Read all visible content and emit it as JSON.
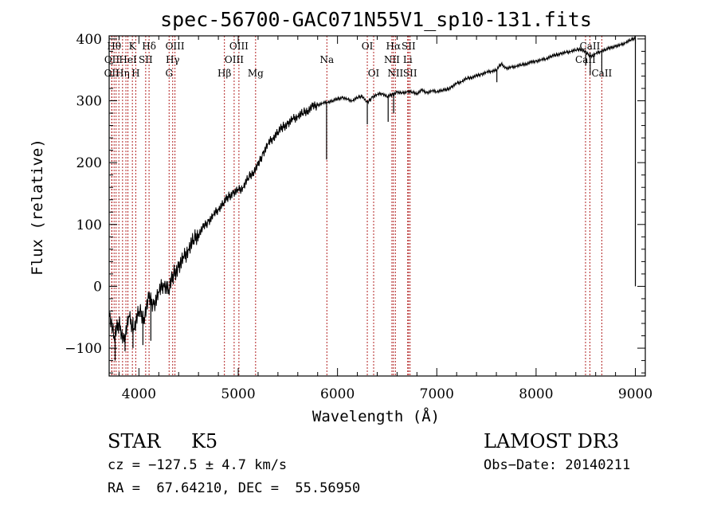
{
  "chart_data": {
    "type": "line",
    "title": "spec-56700-GAC071N55V1_sp10-131.fits",
    "xlabel": "Wavelength (Å)",
    "ylabel": "Flux (relative)",
    "xlim": [
      3700,
      9100
    ],
    "ylim": [
      -145,
      405
    ],
    "xticks": [
      4000,
      5000,
      6000,
      7000,
      8000,
      9000
    ],
    "yticks": [
      -100,
      0,
      100,
      200,
      300,
      400
    ],
    "xtick_labels": [
      "4000",
      "5000",
      "6000",
      "7000",
      "8000",
      "9000"
    ],
    "ytick_labels": [
      "−100",
      "0",
      "100",
      "200",
      "300",
      "400"
    ],
    "grid": false,
    "line_color": "#000000",
    "marker_color": "#b22222",
    "series": [
      {
        "x": [
          3700,
          3750,
          3800,
          3850,
          3900,
          3950,
          4000,
          4050,
          4100,
          4150,
          4200,
          4250,
          4300,
          4350,
          4400,
          4450,
          4500,
          4550,
          4600,
          4650,
          4700,
          4750,
          4800,
          4850,
          4900,
          4950,
          5000,
          5050,
          5100,
          5150,
          5200,
          5250,
          5300,
          5350,
          5400,
          5450,
          5500,
          5550,
          5600,
          5650,
          5700,
          5750,
          5800,
          5850,
          5900,
          5950,
          6000,
          6050,
          6100,
          6150,
          6200,
          6250,
          6300,
          6350,
          6400,
          6450,
          6500,
          6550,
          6600,
          6650,
          6700,
          6750,
          6800,
          6850,
          6900,
          6950,
          7000,
          7050,
          7100,
          7150,
          7200,
          7250,
          7300,
          7350,
          7400,
          7450,
          7500,
          7550,
          7600,
          7650,
          7700,
          7750,
          7800,
          7850,
          7900,
          7950,
          8000,
          8050,
          8100,
          8150,
          8200,
          8250,
          8300,
          8350,
          8400,
          8450,
          8500,
          8550,
          8600,
          8650,
          8700,
          8750,
          8800,
          8850,
          8900,
          8950,
          9000
        ],
        "y": [
          -40,
          -80,
          -60,
          -90,
          -50,
          -70,
          -40,
          -50,
          -20,
          -30,
          -10,
          5,
          -5,
          20,
          30,
          45,
          60,
          75,
          85,
          95,
          105,
          115,
          125,
          135,
          145,
          150,
          155,
          160,
          175,
          185,
          195,
          215,
          230,
          240,
          250,
          258,
          262,
          270,
          275,
          280,
          285,
          290,
          293,
          296,
          298,
          300,
          303,
          305,
          302,
          300,
          305,
          308,
          296,
          306,
          310,
          312,
          307,
          310,
          314,
          312,
          315,
          314,
          312,
          317,
          313,
          316,
          315,
          317,
          318,
          322,
          328,
          331,
          336,
          338,
          340,
          343,
          346,
          348,
          350,
          360,
          352,
          354,
          356,
          358,
          360,
          362,
          364,
          366,
          368,
          372,
          374,
          376,
          378,
          380,
          382,
          384,
          378,
          372,
          376,
          380,
          383,
          386,
          388,
          390,
          394,
          398,
          402
        ]
      }
    ],
    "spikes": [
      {
        "x": 3760,
        "y": -120
      },
      {
        "x": 3860,
        "y": -105
      },
      {
        "x": 3940,
        "y": -100
      },
      {
        "x": 4040,
        "y": -95
      },
      {
        "x": 4120,
        "y": -88
      },
      {
        "x": 5890,
        "y": 205
      },
      {
        "x": 6300,
        "y": 262
      },
      {
        "x": 6510,
        "y": 266
      },
      {
        "x": 6565,
        "y": 280
      },
      {
        "x": 7605,
        "y": 330
      },
      {
        "x": 8500,
        "y": 357
      },
      {
        "x": 8545,
        "y": 342
      },
      {
        "x": 8662,
        "y": 345
      },
      {
        "x": 9000,
        "y": 0
      }
    ],
    "markers": [
      {
        "x": 3750,
        "label": "Hθ",
        "row": 1
      },
      {
        "x": 3728,
        "label": "OII",
        "row": 2
      },
      {
        "x": 3726,
        "label": "OII",
        "row": 3
      },
      {
        "x": 3770,
        "label": "",
        "row": 0
      },
      {
        "x": 3798,
        "label": "",
        "row": 0
      },
      {
        "x": 3835,
        "label": "Hη",
        "row": 3
      },
      {
        "x": 3869,
        "label": "",
        "row": 0
      },
      {
        "x": 3889,
        "label": "HeI",
        "row": 2
      },
      {
        "x": 3934,
        "label": "K",
        "row": 1
      },
      {
        "x": 3968,
        "label": "H",
        "row": 3
      },
      {
        "x": 4068,
        "label": "SII",
        "row": 2
      },
      {
        "x": 4102,
        "label": "Hδ",
        "row": 1
      },
      {
        "x": 4304,
        "label": "G",
        "row": 3
      },
      {
        "x": 4340,
        "label": "Hγ",
        "row": 2
      },
      {
        "x": 4363,
        "label": "OIII",
        "row": 1
      },
      {
        "x": 4861,
        "label": "Hβ",
        "row": 3
      },
      {
        "x": 4959,
        "label": "OIII",
        "row": 2
      },
      {
        "x": 5007,
        "label": "OIII",
        "row": 1
      },
      {
        "x": 5175,
        "label": "Mg",
        "row": 3
      },
      {
        "x": 5893,
        "label": "Na",
        "row": 2
      },
      {
        "x": 6300,
        "label": "OI",
        "row": 1
      },
      {
        "x": 6364,
        "label": "OI",
        "row": 3
      },
      {
        "x": 6548,
        "label": "NII",
        "row": 2
      },
      {
        "x": 6563,
        "label": "Hα",
        "row": 1
      },
      {
        "x": 6583,
        "label": "NII",
        "row": 3
      },
      {
        "x": 6707,
        "label": "Li",
        "row": 2
      },
      {
        "x": 6716,
        "label": "SII",
        "row": 1
      },
      {
        "x": 6731,
        "label": "SII",
        "row": 3
      },
      {
        "x": 8498,
        "label": "CaII",
        "row": 2
      },
      {
        "x": 8542,
        "label": "CaII",
        "row": 1
      },
      {
        "x": 8662,
        "label": "CaII",
        "row": 3
      }
    ]
  },
  "info": {
    "object_class": "STAR",
    "subclass": "K5",
    "survey": "LAMOST DR3",
    "redshift_line": "cz = −127.5 ± 4.7 km/s",
    "obs_date_line": "Obs−Date: 20140211",
    "coords_line": "RA =  67.64210, DEC =  55.56950"
  }
}
